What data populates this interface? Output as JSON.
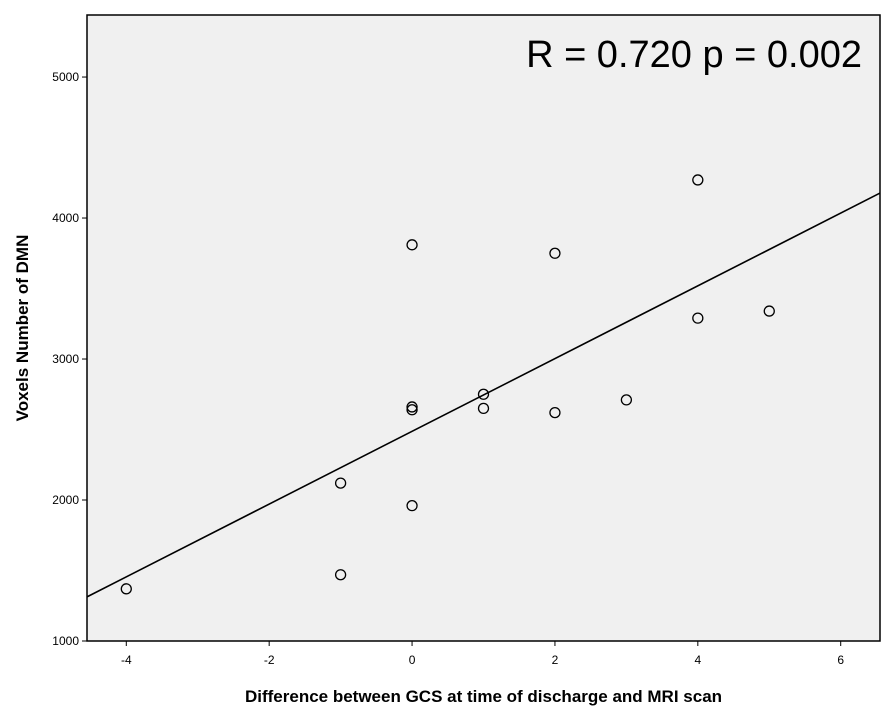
{
  "chart_data": {
    "type": "scatter",
    "title": "",
    "xlabel": "Difference between GCS at time of discharge and MRI scan",
    "ylabel": "Voxels Number of DMN",
    "annotation": "R = 0.720 p = 0.002",
    "xlim": [
      -4.55,
      6.55
    ],
    "ylim": [
      1000,
      5440
    ],
    "xticks": [
      -4,
      -2,
      0,
      2,
      4,
      6
    ],
    "yticks": [
      1000,
      2000,
      3000,
      4000,
      5000
    ],
    "xtick_labels": [
      "-4",
      "-2",
      "0",
      "2",
      "4",
      "6"
    ],
    "ytick_labels": [
      "1000",
      "2000",
      "3000",
      "4000",
      "5000"
    ],
    "grid": false,
    "plot_background": "#f0f0f0",
    "marker_color": "#000000",
    "points": [
      {
        "x": -4,
        "y": 1370
      },
      {
        "x": -1,
        "y": 1470
      },
      {
        "x": -1,
        "y": 2120
      },
      {
        "x": 0,
        "y": 1960
      },
      {
        "x": 0,
        "y": 2640
      },
      {
        "x": 0,
        "y": 2660
      },
      {
        "x": 0,
        "y": 3810
      },
      {
        "x": 1,
        "y": 2650
      },
      {
        "x": 1,
        "y": 2750
      },
      {
        "x": 2,
        "y": 2620
      },
      {
        "x": 2,
        "y": 3750
      },
      {
        "x": 3,
        "y": 2710
      },
      {
        "x": 4,
        "y": 3290
      },
      {
        "x": 4,
        "y": 4270
      },
      {
        "x": 5,
        "y": 3340
      }
    ],
    "fit_line": {
      "type": "linear",
      "intercept": 2487,
      "slope": 258
    }
  }
}
